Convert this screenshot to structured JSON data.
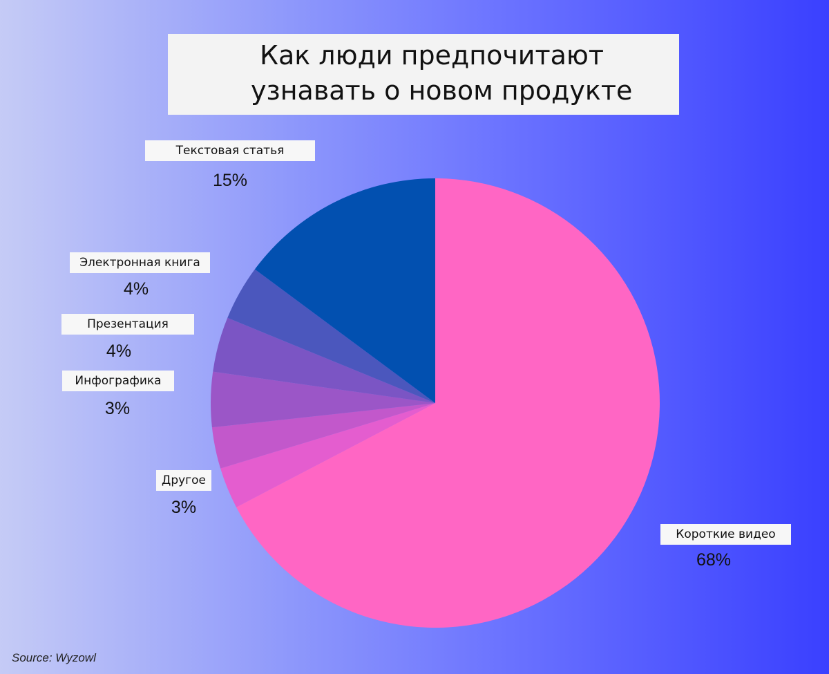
{
  "chart_data": {
    "type": "pie",
    "title_lines": [
      "Как люди предпочитают",
      "узнавать о новом продукте"
    ],
    "slices": [
      {
        "label": "Короткие видео",
        "pct_text": "68%",
        "value": 68,
        "color": "#ff66c4"
      },
      {
        "label": "Другое",
        "pct_text": "3%",
        "value": 3,
        "color": "#e45dcf"
      },
      {
        "label": "Инфографика",
        "pct_text": "3%",
        "value": 3,
        "color": "#c258cb"
      },
      {
        "label": "Презентация",
        "pct_text": "4%",
        "value": 4,
        "color": "#9b56c7"
      },
      {
        "label": "",
        "pct_text": "",
        "value": 4,
        "color": "#7b55c4"
      },
      {
        "label": "Электронная книга",
        "pct_text": "4%",
        "value": 4,
        "color": "#4b57bd"
      },
      {
        "label": "Текстовая статья",
        "pct_text": "15%",
        "value": 15,
        "color": "#0250b0"
      }
    ],
    "source": "Source: Wyzowl"
  }
}
